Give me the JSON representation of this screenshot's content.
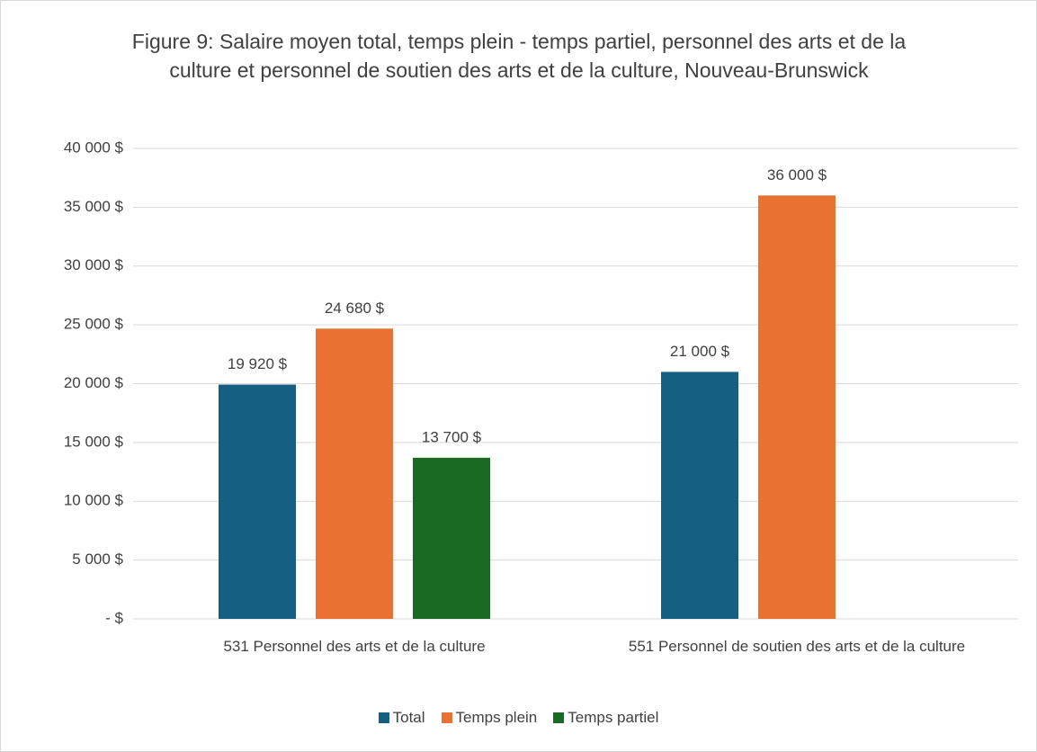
{
  "chart_data": {
    "type": "bar",
    "title": "Figure 9: Salaire moyen total, temps plein - temps partiel, personnel des arts et de la culture et personnel de soutien des arts et de la culture, Nouveau-Brunswick",
    "categories": [
      "531 Personnel des arts et de la culture",
      "551 Personnel de soutien des arts et de la culture"
    ],
    "series": [
      {
        "name": "Total",
        "color": "#156082",
        "values": [
          19920,
          21000
        ],
        "value_labels": [
          "19 920  $",
          "21 000  $"
        ]
      },
      {
        "name": "Temps plein",
        "color": "#e97132",
        "values": [
          24680,
          36000
        ],
        "value_labels": [
          "24 680  $",
          "36 000  $"
        ]
      },
      {
        "name": "Temps partiel",
        "color": "#196b24",
        "values": [
          13700,
          null
        ],
        "value_labels": [
          "13 700  $",
          null
        ]
      }
    ],
    "ylim": [
      0,
      40000
    ],
    "yticks": [
      {
        "value": 0,
        "label": " -   $"
      },
      {
        "value": 5000,
        "label": "5 000  $"
      },
      {
        "value": 10000,
        "label": "10 000  $"
      },
      {
        "value": 15000,
        "label": "15 000  $"
      },
      {
        "value": 20000,
        "label": "20 000  $"
      },
      {
        "value": 25000,
        "label": "25 000  $"
      },
      {
        "value": 30000,
        "label": "30 000  $"
      },
      {
        "value": 35000,
        "label": "35 000  $"
      },
      {
        "value": 40000,
        "label": "40 000  $"
      }
    ],
    "grid": true,
    "legend": "bottom"
  }
}
